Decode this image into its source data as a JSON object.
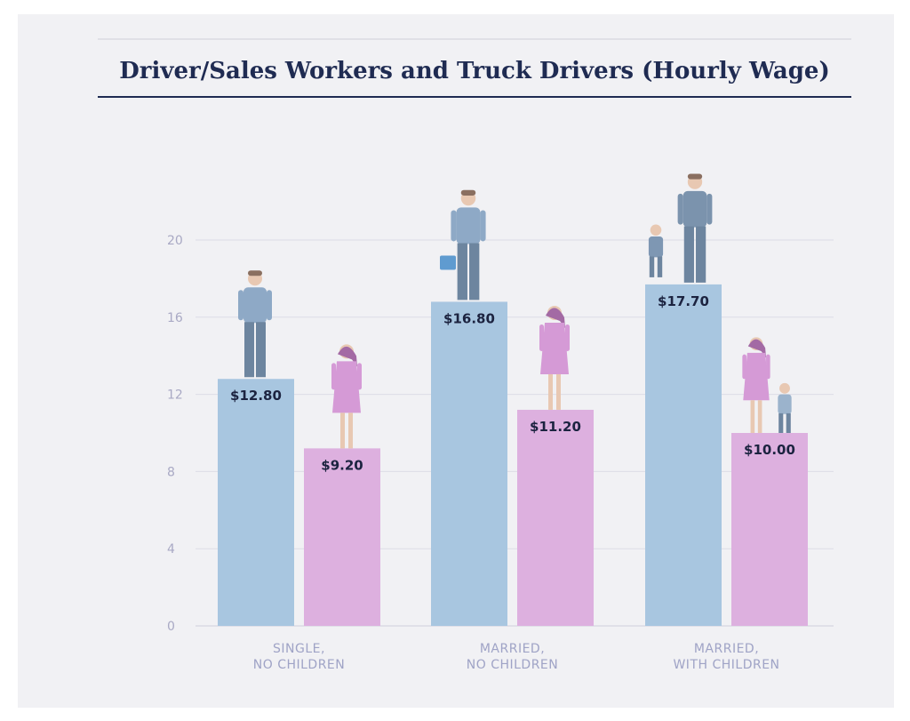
{
  "chart_data": {
    "type": "bar",
    "title": "Driver/Sales Workers and Truck Drivers (Hourly Wage)",
    "categories": [
      [
        "SINGLE,",
        "NO CHILDREN"
      ],
      [
        "MARRIED,",
        "NO CHILDREN"
      ],
      [
        "MARRIED,",
        "WITH CHILDREN"
      ]
    ],
    "series": [
      {
        "values": [
          12.8,
          16.8,
          17.7
        ],
        "labels": [
          "$12.80",
          "$16.80",
          "$17.70"
        ],
        "color": "#a8c6e0"
      },
      {
        "values": [
          9.2,
          11.2,
          10.0
        ],
        "labels": [
          "$9.20",
          "$11.20",
          "$10.00"
        ],
        "color": "#ddb0df"
      }
    ],
    "yticks": [
      0,
      4,
      8,
      12,
      16,
      20
    ],
    "ylim": [
      0,
      24
    ],
    "grid": true,
    "colors": {
      "title": "#1f2b52",
      "rule": "#1f2b52",
      "grid": "#dcdce6",
      "man_shirt": "#8ea9c6",
      "man_pants": "#6d859f",
      "woman": "#d59ad6",
      "skin": "#e8c8b2"
    }
  }
}
